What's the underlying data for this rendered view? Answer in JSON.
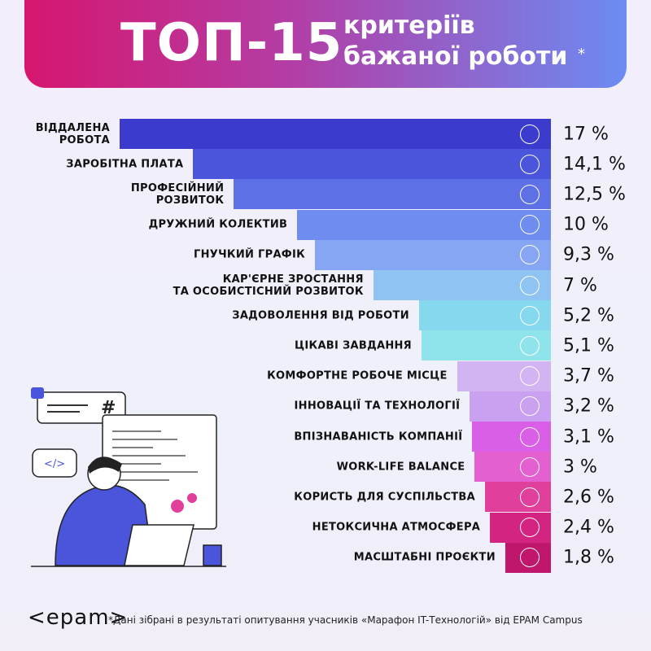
{
  "chart_data": {
    "type": "bar",
    "title": "ТОП-15",
    "subtitle": [
      "критеріїв",
      "бажаної роботи"
    ],
    "title_mark": "*",
    "categories": [
      "ВІДДАЛЕНА\nРОБОТА",
      "ЗАРОБІТНА ПЛАТА",
      "ПРОФЕСІЙНИЙ\nРОЗВИТОК",
      "ДРУЖНИЙ КОЛЕКТИВ",
      "ГНУЧКИЙ ГРАФІК",
      "КАР'ЄРНЕ ЗРОСТАННЯ\nТА ОСОБИСТІСНИЙ РОЗВИТОК",
      "ЗАДОВОЛЕННЯ ВІД РОБОТИ",
      "ЦІКАВІ ЗАВДАННЯ",
      "КОМФОРТНЕ РОБОЧЕ МІСЦЕ",
      "ІННОВАЦІЇ ТА ТЕХНОЛОГІЇ",
      "ВПІЗНАВАНІСТЬ КОМПАНІЇ",
      "WORK-LIFE BALANCE",
      "КОРИСТЬ ДЛЯ СУСПІЛЬСТВА",
      "НЕТОКСИЧНА АТМОСФЕРА",
      "МАСШТАБНІ ПРОЄКТИ"
    ],
    "values": [
      17,
      14.1,
      12.5,
      10,
      9.3,
      7,
      5.2,
      5.1,
      3.7,
      3.2,
      3.1,
      3,
      2.6,
      2.4,
      1.8
    ],
    "value_labels": [
      "17 %",
      "14,1 %",
      "12,5 %",
      "10 %",
      "9,3 %",
      "7 %",
      "5,2 %",
      "5,1 %",
      "3,7 %",
      "3,2 %",
      "3,1 %",
      "3 %",
      "2,6 %",
      "2,4 %",
      "1,8 %"
    ],
    "colors": [
      "#3b3ccd",
      "#4a55dc",
      "#5d70e6",
      "#6f8cf0",
      "#86a6f4",
      "#8fc4f2",
      "#86d8ee",
      "#8fe3ea",
      "#d3b4f2",
      "#c9a1f0",
      "#d95fe6",
      "#e45fd0",
      "#e0409c",
      "#d42481",
      "#c0166c"
    ],
    "logo": "<epam>",
    "footnote": "*Дані зібрані в результаті опитування учасників «Марафон IT-Технологій» від EPAM Campus"
  }
}
